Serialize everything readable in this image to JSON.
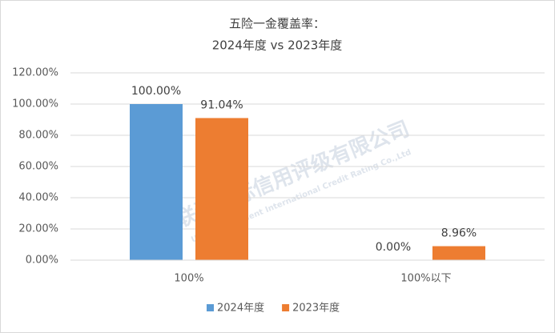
{
  "chart_data": {
    "type": "bar",
    "title": "五险一金覆盖率：",
    "subtitle": "2024年度 vs 2023年度",
    "categories": [
      "100%",
      "100%以下"
    ],
    "series": [
      {
        "name": "2024年度",
        "color": "#5b9bd5",
        "values": [
          100,
          0
        ],
        "value_labels": [
          "100.00%",
          "0.00%"
        ]
      },
      {
        "name": "2023年度",
        "color": "#ed7d31",
        "values": [
          91.04,
          8.96
        ],
        "value_labels": [
          "91.04%",
          "8.96%"
        ]
      }
    ],
    "ylim": [
      0,
      120
    ],
    "yticks": [
      {
        "value": 0,
        "label": "0.00%"
      },
      {
        "value": 20,
        "label": "20.00%"
      },
      {
        "value": 40,
        "label": "40.00%"
      },
      {
        "value": 60,
        "label": "60.00%"
      },
      {
        "value": 80,
        "label": "80.00%"
      },
      {
        "value": 100,
        "label": "100.00%"
      },
      {
        "value": 120,
        "label": "120.00%"
      }
    ],
    "grid": true,
    "legend": "bottom",
    "watermark": [
      "联洲国际信用评级有限公司",
      "United Continent International Credit Rating Co.,Ltd"
    ]
  }
}
